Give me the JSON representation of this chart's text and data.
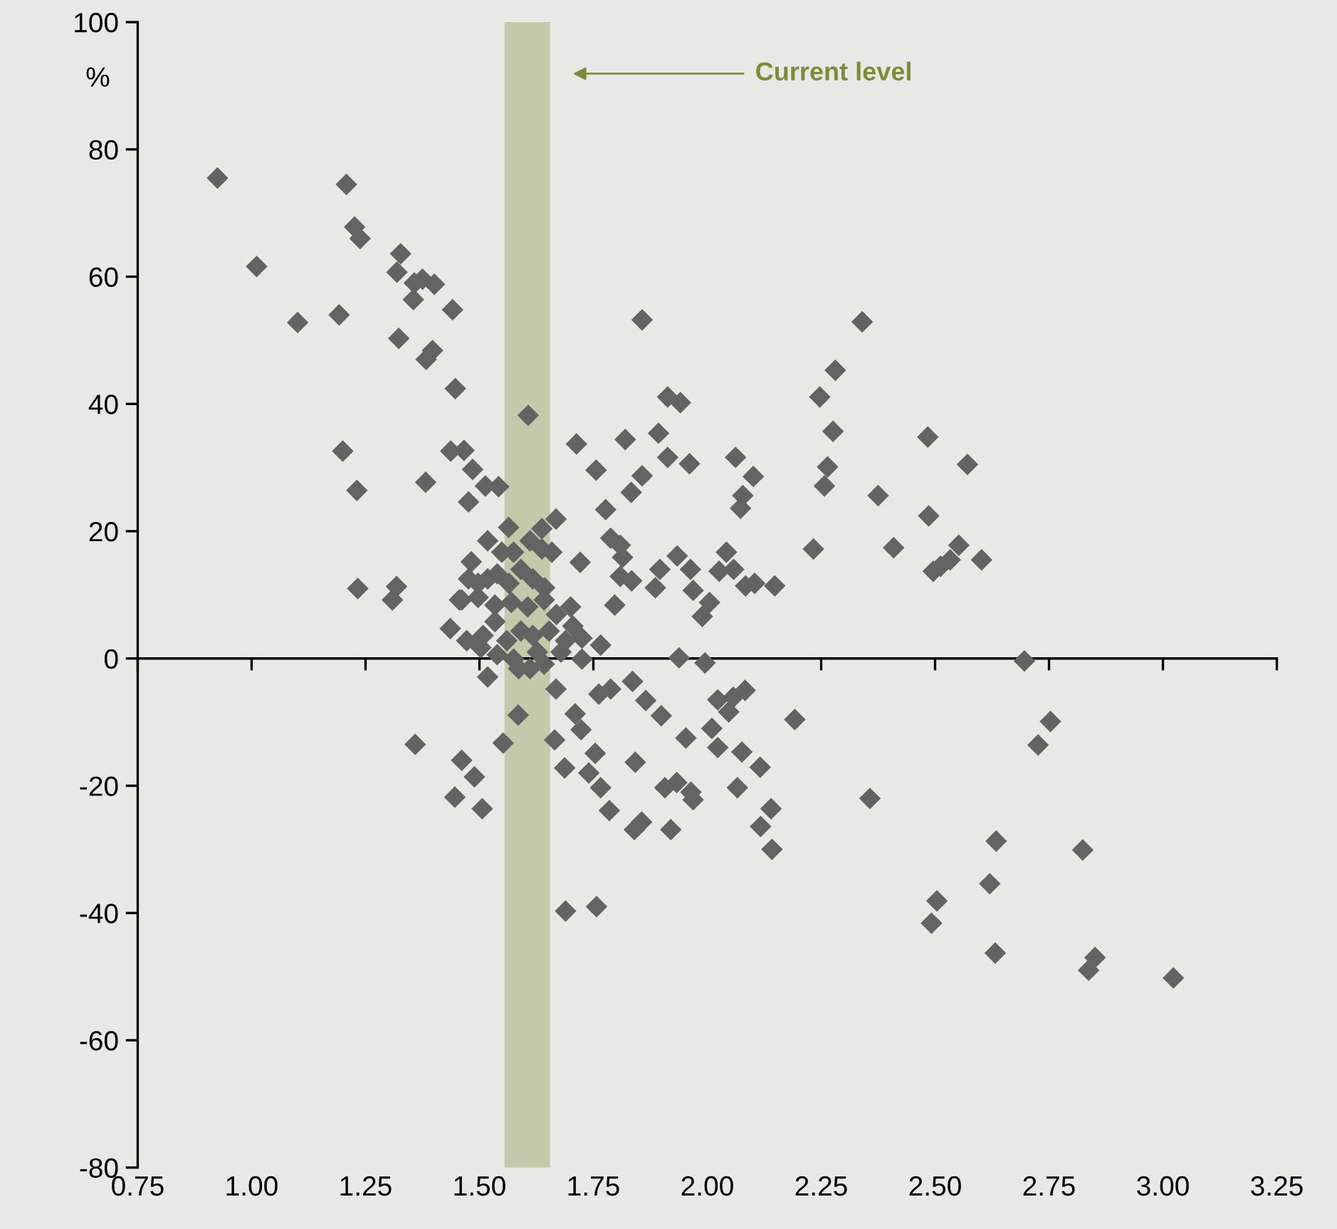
{
  "chart_data": {
    "type": "scatter",
    "ylabel": "%",
    "marker": "diamond",
    "legend": false,
    "xlim": [
      0.75,
      3.25
    ],
    "ylim": [
      -80,
      100
    ],
    "xticks": [
      {
        "value": 0.75,
        "label": "0.75"
      },
      {
        "value": 1,
        "label": "1.00"
      },
      {
        "value": 1.25,
        "label": "1.25"
      },
      {
        "value": 1.5,
        "label": "1.50"
      },
      {
        "value": 1.75,
        "label": "1.75"
      },
      {
        "value": 2,
        "label": "2.00"
      },
      {
        "value": 2.25,
        "label": "2.25"
      },
      {
        "value": 2.5,
        "label": "2.50"
      },
      {
        "value": 2.75,
        "label": "2.75"
      },
      {
        "value": 3,
        "label": "3.00"
      },
      {
        "value": 3.25,
        "label": "3.25"
      }
    ],
    "yticks": [
      -80,
      -60,
      -40,
      -20,
      0,
      20,
      40,
      60,
      80,
      100
    ],
    "bands": [
      {
        "axis": "x",
        "from": 1.555,
        "to": 1.655,
        "color": "#c5c9ab"
      }
    ],
    "annotations": [
      "Current level"
    ],
    "series": [
      {
        "color": "#636363",
        "x": [
          0.925,
          1.208,
          1.226,
          1.238,
          1.011,
          1.327,
          1.319,
          1.357,
          1.375,
          1.401,
          1.355,
          1.441,
          1.101,
          1.192,
          1.323,
          1.397,
          1.383,
          1.447,
          1.607,
          1.713,
          1.2,
          1.437,
          1.466,
          1.485,
          1.382,
          1.231,
          1.513,
          1.542,
          1.476,
          1.233,
          1.318,
          1.309,
          1.668,
          1.564,
          1.637,
          1.721,
          1.756,
          1.82,
          1.893,
          2.276,
          1.857,
          1.833,
          1.913,
          1.961,
          2.062,
          2.101,
          2.078,
          2.073,
          2.264,
          2.257,
          2.375,
          1.777,
          1.518,
          1.788,
          1.809,
          1.814,
          1.809,
          1.834,
          1.797,
          1.934,
          1.896,
          1.886,
          1.963,
          1.969,
          2.005,
          1.989,
          2.042,
          2.026,
          2.058,
          2.084,
          2.104,
          2.148,
          2.233,
          2.409,
          1.938,
          1.995,
          1.518,
          1.668,
          1.585,
          1.552,
          1.665,
          1.71,
          1.723,
          1.687,
          1.754,
          1.74,
          1.766,
          1.785,
          1.762,
          1.788,
          1.836,
          1.865,
          1.899,
          1.842,
          1.953,
          2.023,
          2.057,
          2.083,
          2.047,
          2.01,
          2.023,
          2.076,
          2.116,
          2.192,
          2.066,
          1.907,
          1.933,
          1.964,
          1.969,
          2.14,
          2.117,
          2.142,
          1.84,
          1.856,
          1.92,
          2.357,
          1.461,
          1.489,
          1.446,
          1.506,
          1.359,
          1.482,
          1.549,
          1.575,
          1.611,
          1.637,
          1.659,
          1.476,
          1.497,
          1.518,
          1.539,
          1.565,
          1.591,
          1.617,
          1.643,
          1.7,
          1.461,
          1.497,
          1.534,
          1.57,
          1.606,
          1.642,
          1.669,
          1.436,
          1.472,
          1.508,
          1.534,
          1.56,
          1.591,
          1.617,
          1.653,
          1.689,
          1.725,
          1.766,
          1.705,
          1.575,
          1.611,
          1.642,
          1.679,
          1.725,
          1.503,
          1.539,
          1.586,
          1.627,
          1.456,
          2.34,
          2.281,
          2.247,
          2.484,
          2.571,
          2.486,
          2.552,
          2.533,
          2.496,
          2.512,
          2.602,
          2.696,
          2.753,
          2.726,
          2.634,
          2.824,
          2.62,
          2.504,
          2.492,
          2.632,
          2.851,
          2.837,
          3.023,
          1.857,
          1.689,
          1.757,
          1.913,
          1.941
        ],
        "values": [
          75.5,
          74.5,
          67.8,
          66,
          61.6,
          63.6,
          60.7,
          59,
          59.6,
          58.8,
          56.4,
          54.8,
          52.8,
          54,
          50.3,
          48.4,
          47,
          42.4,
          38.2,
          33.7,
          32.6,
          32.6,
          32.7,
          29.7,
          27.7,
          26.4,
          27.1,
          27,
          24.6,
          11,
          11.3,
          9.2,
          21.9,
          20.6,
          20.4,
          15.1,
          29.6,
          34.4,
          35.4,
          35.7,
          28.7,
          26.1,
          31.6,
          30.6,
          31.6,
          28.6,
          25.6,
          23.6,
          30.1,
          27.1,
          25.6,
          23.4,
          18.5,
          18.9,
          17.8,
          15.9,
          12.9,
          12.2,
          8.4,
          16.1,
          14,
          11.1,
          14,
          10.7,
          8.8,
          6.6,
          16.7,
          13.7,
          14,
          11.4,
          11.8,
          11.4,
          17.2,
          17.4,
          0.1,
          -0.7,
          -2.9,
          -4.8,
          -8.9,
          -13.3,
          -12.8,
          -8.7,
          -11.2,
          -17.2,
          -14.9,
          -18,
          -20.3,
          -23.9,
          -5.6,
          -4.8,
          -3.6,
          -6.6,
          -9,
          -16.3,
          -12.5,
          -6.5,
          -6.1,
          -5,
          -8.4,
          -11,
          -14,
          -14.7,
          -17.1,
          -9.6,
          -20.3,
          -20.3,
          -19.5,
          -21,
          -22.2,
          -23.6,
          -26.4,
          -30,
          -26.9,
          -25.7,
          -26.9,
          -22,
          -16,
          -18.6,
          -21.8,
          -23.6,
          -13.5,
          15.2,
          16.7,
          16.7,
          18.5,
          17.2,
          16.7,
          12.5,
          11.8,
          12.5,
          13.3,
          11.8,
          14,
          12.5,
          11.1,
          8.1,
          9.2,
          9.6,
          8.4,
          8.8,
          8.1,
          9.2,
          6.9,
          4.7,
          2.8,
          3.6,
          5.8,
          2.8,
          4.3,
          3.6,
          4.3,
          2.8,
          3.2,
          2.1,
          5.1,
          -0.1,
          -1.6,
          -0.9,
          1,
          -0.1,
          1.7,
          0.6,
          -1.6,
          1,
          9.2,
          52.9,
          45.3,
          41.1,
          34.8,
          30.5,
          22.4,
          17.8,
          15.5,
          13.7,
          14.5,
          15.5,
          -0.4,
          -9.9,
          -13.6,
          -28.7,
          -30.1,
          -35.4,
          -38.1,
          -41.6,
          -46.3,
          -47,
          -49,
          -50.2,
          53.2,
          -39.7,
          -39,
          41.1,
          40.2
        ]
      }
    ]
  }
}
